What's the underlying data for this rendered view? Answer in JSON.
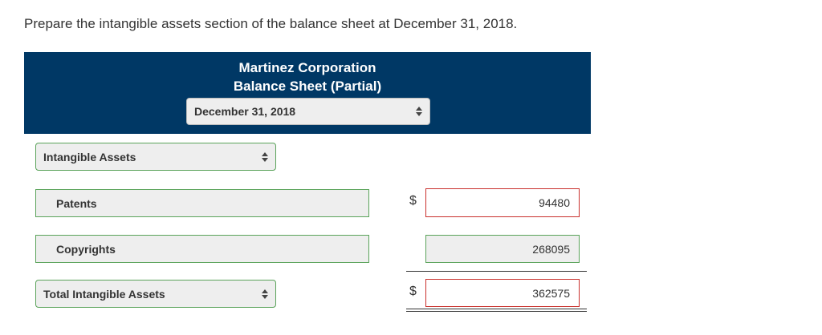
{
  "instruction": "Prepare the intangible assets section of the balance sheet at December 31, 2018.",
  "header": {
    "company_name": "Martinez Corporation",
    "statement_title": "Balance Sheet (Partial)",
    "date_select": "December 31, 2018"
  },
  "section_select": "Intangible Assets",
  "rows": [
    {
      "label": "Patents",
      "currency": "$",
      "amount": "94480"
    },
    {
      "label": "Copyrights",
      "currency": "",
      "amount": "268095"
    }
  ],
  "total": {
    "label": "Total Intangible Assets",
    "currency": "$",
    "amount": "362575"
  },
  "colors": {
    "header_bg": "#003865",
    "correct_border": "#5aa35a",
    "incorrect_border": "#c9302c"
  }
}
